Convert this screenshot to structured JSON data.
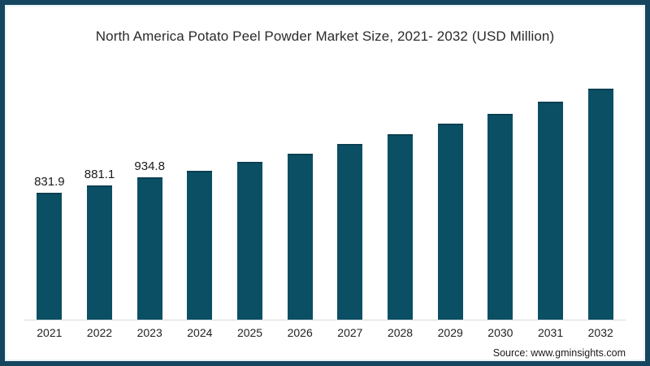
{
  "title": "North America Potato Peel Powder Market Size, 2021- 2032 (USD Million)",
  "source": "Source: www.gminsights.com",
  "colors": {
    "bar": "#0b4f64",
    "frame_border": "#16465f",
    "axis_line": "#d9d9d9",
    "title_text": "#2b2b2b",
    "label_text": "#1a1a1a"
  },
  "chart_data": {
    "type": "bar",
    "title": "North America Potato Peel Powder Market Size, 2021- 2032 (USD Million)",
    "unit": "USD Million",
    "categories": [
      "2021",
      "2022",
      "2023",
      "2024",
      "2025",
      "2026",
      "2027",
      "2028",
      "2029",
      "2030",
      "2031",
      "2032"
    ],
    "values": [
      831.9,
      881.1,
      934.8,
      975,
      1035,
      1090,
      1150,
      1215,
      1285,
      1350,
      1430,
      1515
    ],
    "data_labels": [
      "831.9",
      "881.1",
      "934.8",
      "",
      "",
      "",
      "",
      "",
      "",
      "",
      "",
      ""
    ],
    "note": "Only 2021-2023 bars carry visible value labels; 2024-2032 values estimated from bar heights",
    "xlabel": "",
    "ylabel": "",
    "grid": false,
    "legend": false
  }
}
